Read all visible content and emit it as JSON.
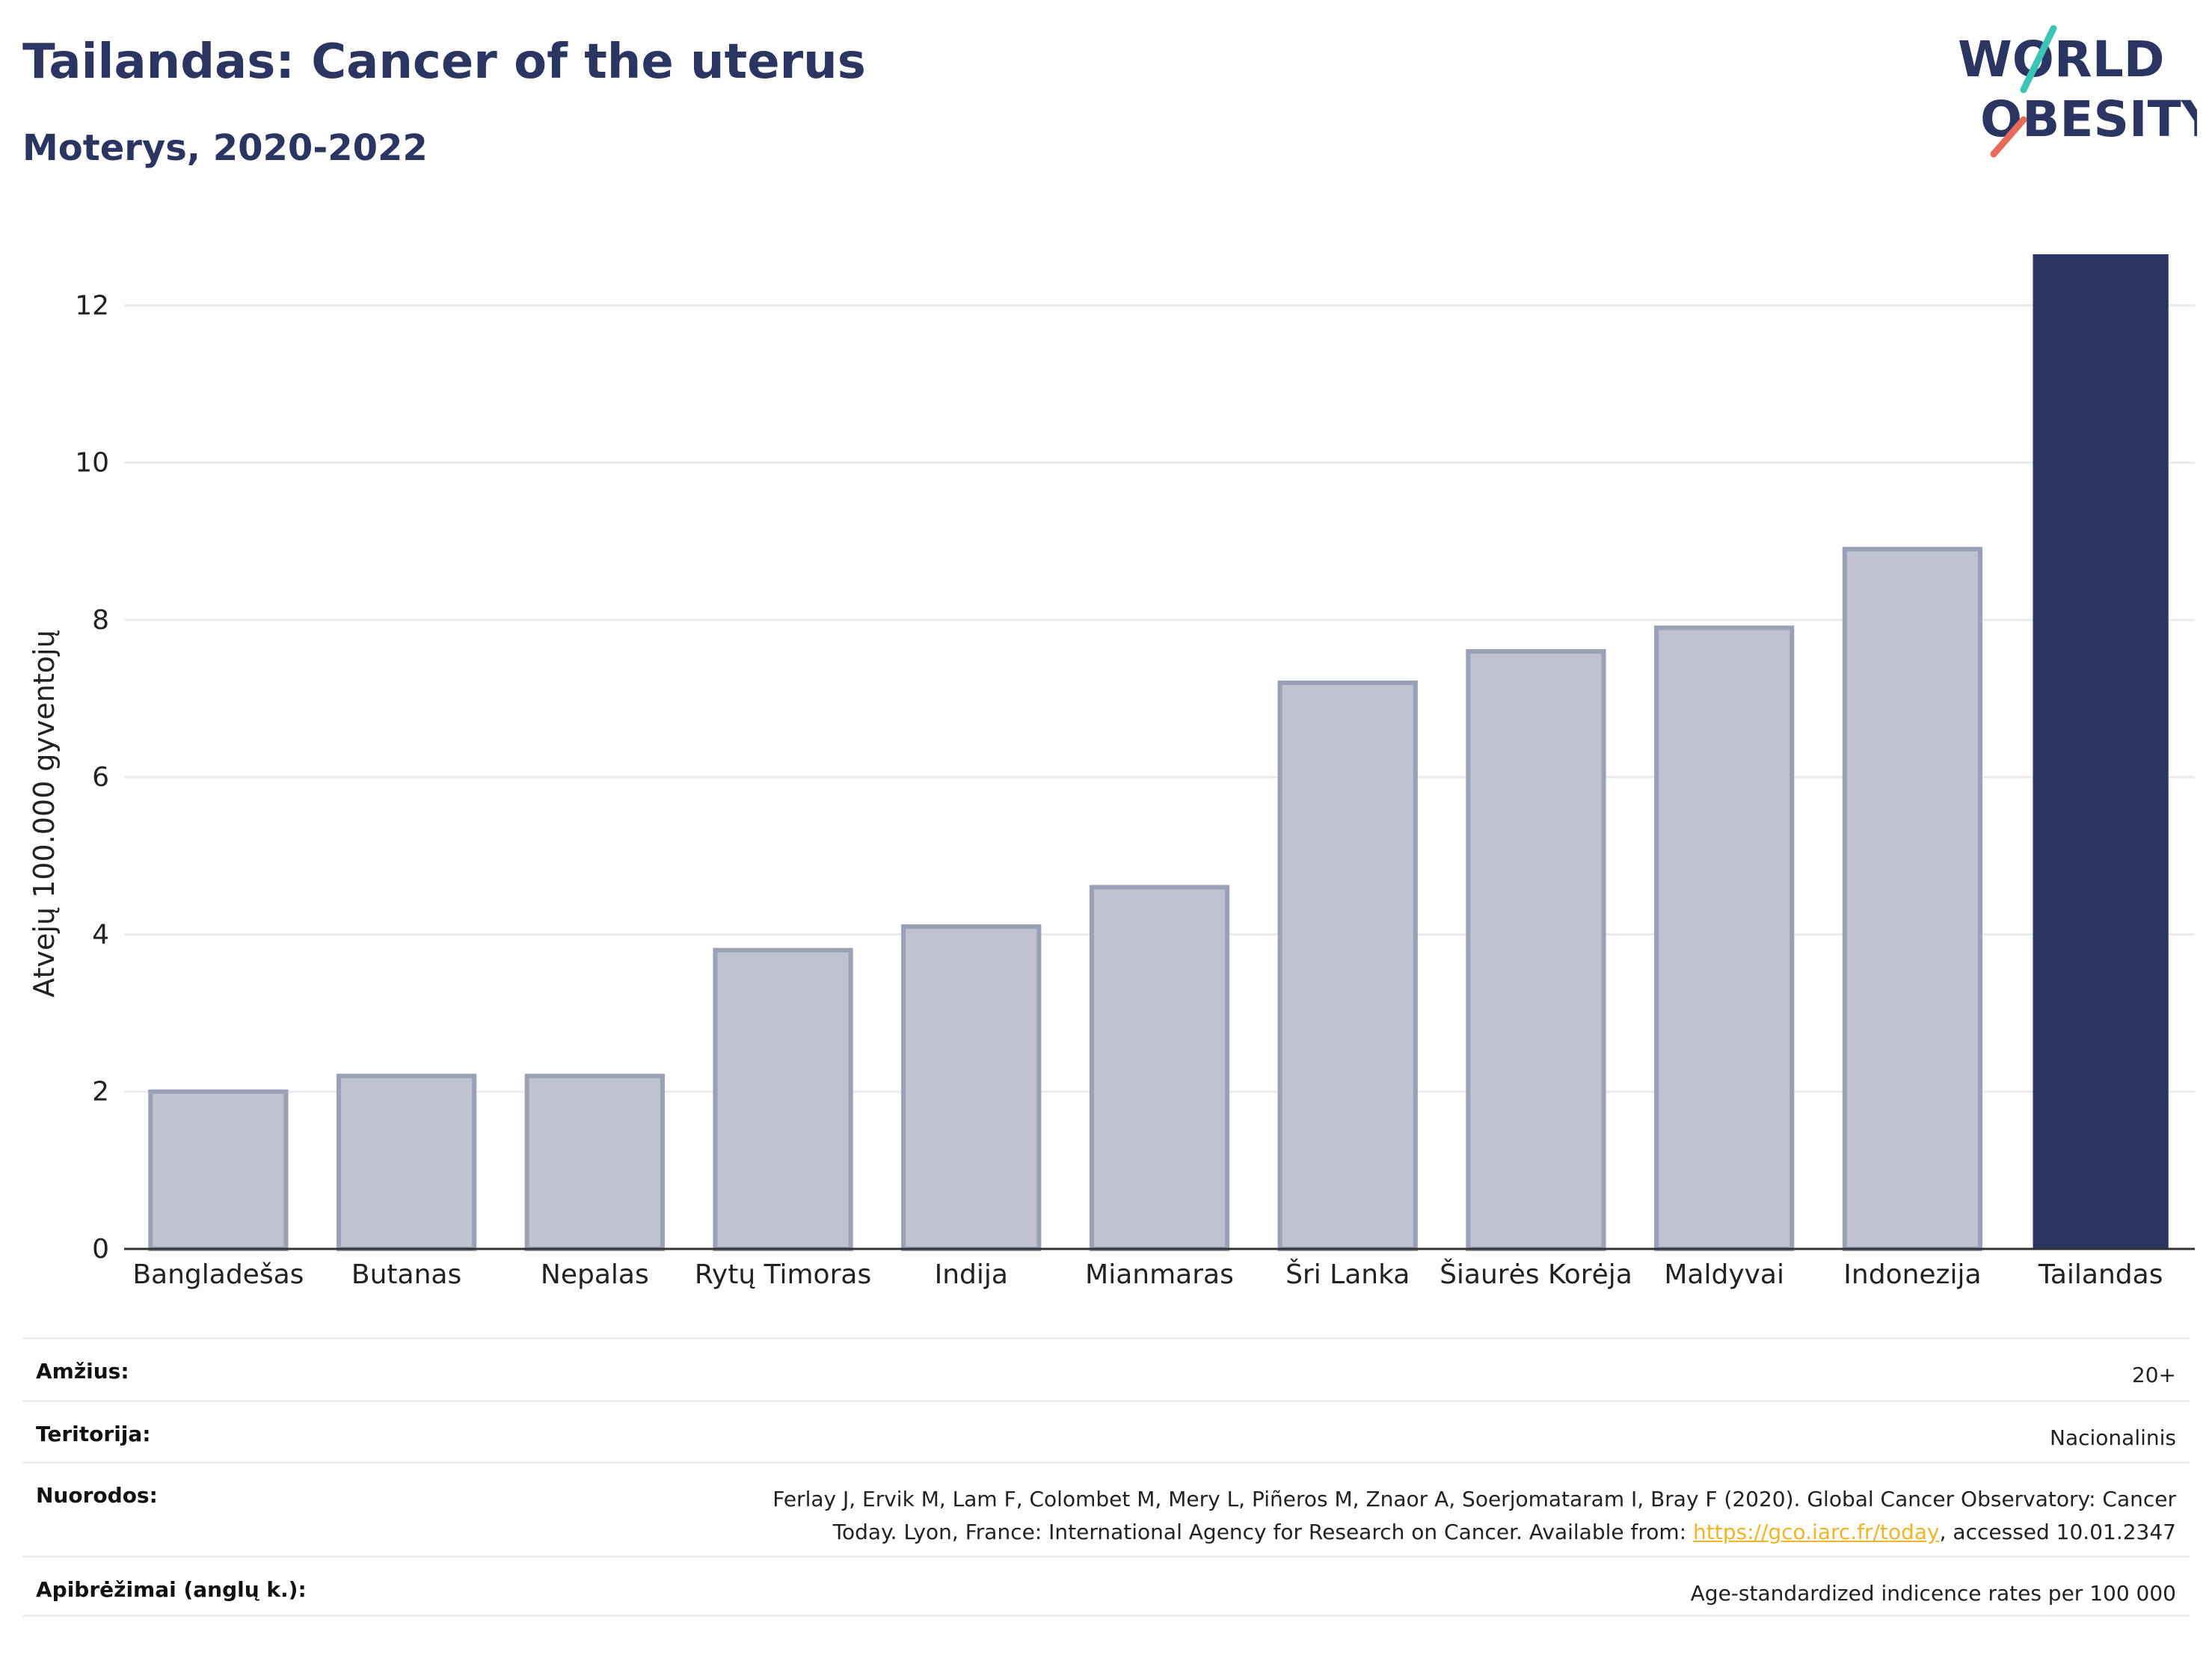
{
  "header": {
    "title": "Tailandas: Cancer of the uterus",
    "subtitle": "Moterys, 2020-2022"
  },
  "logo": {
    "line1": "WORLD",
    "line2": "OBESITY"
  },
  "colors": {
    "highlight": "#2b3561",
    "other": "#bfc3d0",
    "other_border": "#9aa0b5",
    "accent_teal": "#3cc4b6",
    "accent_red": "#e86a5a",
    "link": "#f0b428"
  },
  "chart_data": {
    "type": "bar",
    "categories": [
      "Bangladešas",
      "Butanas",
      "Nepalas",
      "Rytų Timoras",
      "Indija",
      "Mianmaras",
      "Šri Lanka",
      "Šiaurės Korėja",
      "Maldyvai",
      "Indonezija",
      "Tailandas"
    ],
    "values": [
      2.0,
      2.2,
      2.2,
      3.8,
      4.1,
      4.6,
      7.2,
      7.6,
      7.9,
      8.9,
      12.65
    ],
    "highlight": "Tailandas",
    "ylabel": "Atvejų 100.000 gyventojų",
    "xlabel": "",
    "ylim": [
      0,
      12.65
    ],
    "yticks": [
      0,
      2,
      4,
      6,
      8,
      10,
      12
    ],
    "grid": true
  },
  "info": {
    "rows": [
      {
        "key": "Amžius:",
        "value": "20+"
      },
      {
        "key": "Teritorija:",
        "value": "Nacionalinis"
      },
      {
        "key": "Nuorodos:",
        "value_line1": "Ferlay J, Ervik M, Lam F, Colombet M, Mery L, Piñeros M, Znaor A, Soerjomataram I, Bray F (2020). Global Cancer Observatory: Cancer",
        "value_pre": "Today. Lyon, France: International Agency for Research on Cancer. Available from: ",
        "link": "https://gco.iarc.fr/today",
        "value_post": ", accessed 10.01.2347"
      },
      {
        "key": "Apibrėžimai (anglų k.):",
        "value": "Age-standardized indicence rates per 100 000"
      }
    ]
  }
}
